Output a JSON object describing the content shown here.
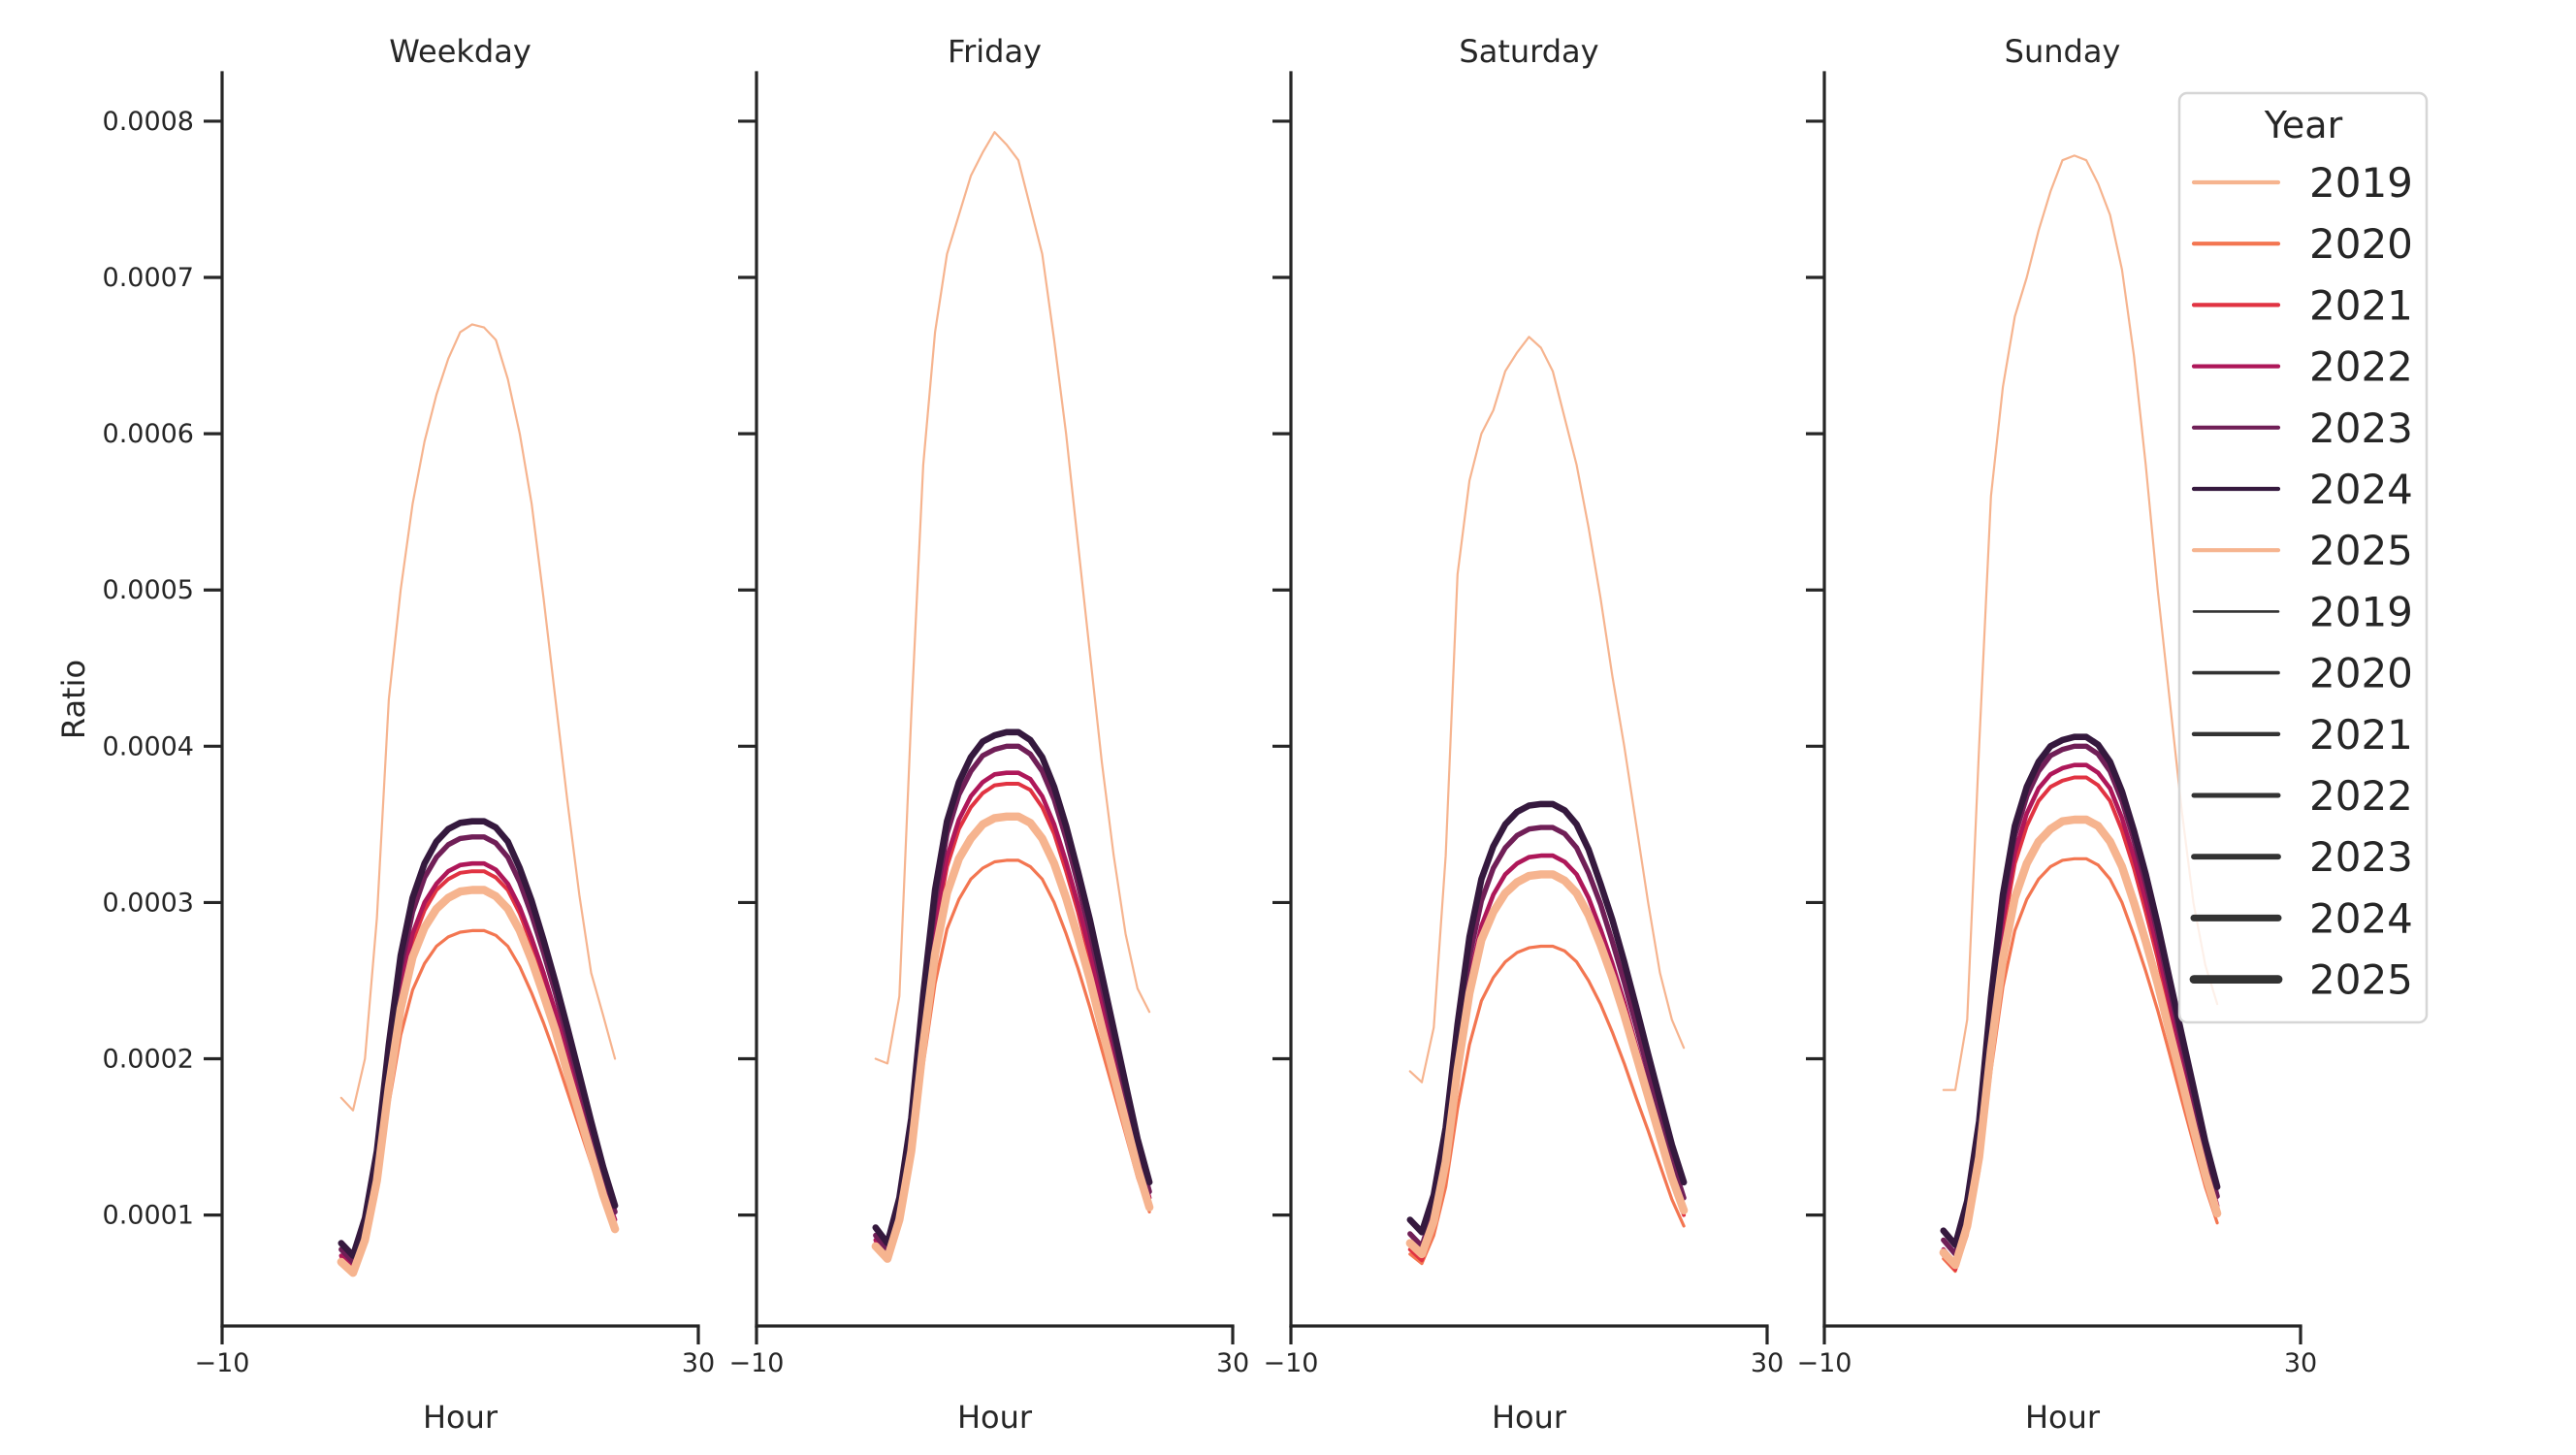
{
  "chart_data": {
    "type": "line",
    "layout": "facet-columns",
    "ylabel": "Ratio",
    "xlabel": "Hour",
    "xlim": [
      -10,
      30
    ],
    "ylim": [
      2.9e-05,
      0.000831
    ],
    "x_ticks": [
      "−10",
      "30"
    ],
    "x_tick_values": [
      -10,
      30
    ],
    "y_ticks": [
      "0.0001",
      "0.0002",
      "0.0003",
      "0.0004",
      "0.0005",
      "0.0006",
      "0.0007",
      "0.0008"
    ],
    "y_tick_values": [
      0.0001,
      0.0002,
      0.0003,
      0.0004,
      0.0005,
      0.0006,
      0.0007,
      0.0008
    ],
    "grid": false,
    "x": [
      0,
      1,
      2,
      3,
      4,
      5,
      6,
      7,
      8,
      9,
      10,
      11,
      12,
      13,
      14,
      15,
      16,
      17,
      18,
      19,
      20,
      21,
      22,
      23
    ],
    "value_scale": 1e-06,
    "years": [
      {
        "year": "2019",
        "color": "#f6b48f",
        "size_rank": 1
      },
      {
        "year": "2020",
        "color": "#f37651",
        "size_rank": 2
      },
      {
        "year": "2021",
        "color": "#e13342",
        "size_rank": 3
      },
      {
        "year": "2022",
        "color": "#ae1759",
        "size_rank": 4
      },
      {
        "year": "2023",
        "color": "#701f57",
        "size_rank": 5
      },
      {
        "year": "2024",
        "color": "#35193e",
        "size_rank": 6
      },
      {
        "year": "2025",
        "color": "#f6b48f",
        "size_rank": 7
      }
    ],
    "panels": [
      {
        "title": "Weekday",
        "series": [
          {
            "name": "2019",
            "values": [
              175,
              167,
              200,
              290,
              430,
              500,
              555,
              595,
              625,
              648,
              665,
              670,
              668,
              660,
              635,
              600,
              555,
              495,
              430,
              365,
              305,
              255,
              228,
              200
            ]
          },
          {
            "name": "2020",
            "values": [
              72,
              66,
              85,
              118,
              171,
              215,
              244,
              261,
              272,
              278,
              281,
              282,
              282,
              279,
              272,
              259,
              242,
              223,
              202,
              179,
              156,
              133,
              110,
              91
            ]
          },
          {
            "name": "2021",
            "values": [
              72,
              65,
              87,
              127,
              189,
              241,
              275,
              295,
              308,
              315,
              319,
              320,
              320,
              316,
              308,
              293,
              273,
              251,
              226,
              198,
              171,
              144,
              117,
              94
            ]
          },
          {
            "name": "2022",
            "values": [
              74,
              66,
              89,
              129,
              192,
              245,
              280,
              300,
              312,
              320,
              324,
              325,
              325,
              321,
              312,
              297,
              277,
              255,
              230,
              202,
              174,
              147,
              119,
              97
            ]
          },
          {
            "name": "2023",
            "values": [
              78,
              70,
              94,
              136,
              202,
              258,
              294,
              316,
              329,
              337,
              341,
              342,
              342,
              338,
              329,
              313,
              292,
              268,
              242,
              213,
              184,
              155,
              126,
              102
            ]
          },
          {
            "name": "2024",
            "values": [
              82,
              74,
              98,
              141,
              209,
              266,
              303,
              325,
              339,
              347,
              351,
              352,
              352,
              348,
              339,
              322,
              301,
              276,
              249,
              220,
              190,
              160,
              131,
              106
            ]
          },
          {
            "name": "2025",
            "values": [
              70,
              63,
              84,
              122,
              182,
              232,
              265,
              284,
              296,
              303,
              307,
              308,
              308,
              304,
              296,
              282,
              263,
              241,
              218,
              191,
              165,
              139,
              113,
              91
            ]
          }
        ]
      },
      {
        "title": "Friday",
        "series": [
          {
            "name": "2019",
            "values": [
              200,
              197,
              240,
              420,
              580,
              665,
              715,
              740,
              765,
              780,
              793,
              785,
              775,
              745,
              715,
              660,
              600,
              530,
              460,
              390,
              330,
              280,
              245,
              230
            ]
          },
          {
            "name": "2020",
            "values": [
              80,
              73,
              95,
              134,
              196,
              248,
              283,
              302,
              315,
              322,
              326,
              327,
              327,
              323,
              315,
              300,
              280,
              258,
              233,
              206,
              179,
              152,
              124,
              102
            ]
          },
          {
            "name": "2021",
            "values": [
              82,
              73,
              100,
              147,
              220,
              282,
              323,
              347,
              361,
              370,
              375,
              376,
              376,
              372,
              361,
              344,
              320,
              294,
              264,
              232,
              200,
              167,
              135,
              108
            ]
          },
          {
            "name": "2022",
            "values": [
              84,
              75,
              102,
              150,
              225,
              287,
              329,
              353,
              368,
              377,
              382,
              383,
              383,
              379,
              368,
              350,
              326,
              299,
              269,
              236,
              204,
              171,
              138,
              111
            ]
          },
          {
            "name": "2023",
            "values": [
              87,
              78,
              106,
              156,
              234,
              300,
              344,
              369,
              384,
              394,
              398,
              400,
              400,
              395,
              384,
              366,
              341,
              312,
              281,
              247,
              212,
              178,
              143,
              115
            ]
          },
          {
            "name": "2024",
            "values": [
              92,
              82,
              111,
              162,
              241,
              308,
              352,
              377,
              393,
              403,
              407,
              409,
              409,
              404,
              393,
              374,
              349,
              320,
              289,
              254,
              219,
              184,
              149,
              121
            ]
          },
          {
            "name": "2025",
            "values": [
              80,
              72,
              97,
              141,
              209,
              267,
              306,
              328,
              341,
              350,
              354,
              355,
              355,
              351,
              341,
              325,
              303,
              278,
              251,
              220,
              190,
              160,
              130,
              105
            ]
          }
        ]
      },
      {
        "title": "Saturday",
        "series": [
          {
            "name": "2019",
            "values": [
              192,
              185,
              220,
              330,
              510,
              570,
              600,
              615,
              640,
              652,
              662,
              655,
              640,
              610,
              580,
              540,
              495,
              445,
              400,
              350,
              300,
              255,
              225,
              207
            ]
          },
          {
            "name": "2020",
            "values": [
              75,
              69,
              87,
              118,
              168,
              209,
              237,
              252,
              262,
              268,
              271,
              272,
              272,
              269,
              262,
              250,
              235,
              217,
              197,
              175,
              154,
              132,
              110,
              93
            ]
          },
          {
            "name": "2021",
            "values": [
              78,
              71,
              92,
              131,
              191,
              241,
              275,
              294,
              306,
              313,
              317,
              318,
              318,
              314,
              306,
              292,
              272,
              251,
              227,
              200,
              174,
              148,
              121,
              100
            ]
          },
          {
            "name": "2022",
            "values": [
              82,
              75,
              97,
              137,
              199,
              251,
              285,
              305,
              318,
              325,
              329,
              330,
              330,
              326,
              318,
              303,
              283,
              261,
              236,
              208,
              181,
              154,
              127,
              104
            ]
          },
          {
            "name": "2023",
            "values": [
              88,
              80,
              104,
              145,
              210,
              265,
              301,
              322,
              335,
              343,
              347,
              348,
              348,
              344,
              335,
              319,
              299,
              275,
              249,
              221,
              192,
              163,
              135,
              111
            ]
          },
          {
            "name": "2024",
            "values": [
              97,
              89,
              113,
              156,
              222,
              278,
              315,
              336,
              350,
              358,
              362,
              363,
              363,
              359,
              350,
              334,
              312,
              289,
              262,
              233,
              203,
              174,
              145,
              121
            ]
          },
          {
            "name": "2025",
            "values": [
              82,
              75,
              96,
              134,
              193,
              242,
              276,
              294,
              306,
              313,
              317,
              318,
              318,
              314,
              306,
              292,
              273,
              252,
              228,
              202,
              176,
              150,
              124,
              103
            ]
          }
        ]
      },
      {
        "title": "Sunday",
        "series": [
          {
            "name": "2019",
            "values": [
              180,
              180,
              225,
              400,
              560,
              630,
              675,
              700,
              730,
              755,
              775,
              778,
              775,
              760,
              740,
              705,
              650,
              580,
              500,
              430,
              360,
              300,
              260,
              235
            ]
          },
          {
            "name": "2020",
            "values": [
              72,
              64,
              87,
              128,
              192,
              246,
              282,
              302,
              315,
              323,
              327,
              328,
              328,
              324,
              315,
              300,
              279,
              256,
              231,
              203,
              174,
              146,
              118,
              95
            ]
          },
          {
            "name": "2021",
            "values": [
              74,
              65,
              92,
              141,
              218,
              282,
              325,
              349,
              365,
              374,
              378,
              380,
              380,
              375,
              365,
              346,
              322,
              294,
              264,
              230,
              196,
              163,
              129,
              102
            ]
          },
          {
            "name": "2022",
            "values": [
              78,
              69,
              97,
              146,
              224,
              289,
              332,
              357,
              373,
              382,
              386,
              388,
              388,
              383,
              373,
              354,
              329,
              301,
              270,
              236,
              202,
              168,
              134,
              106
            ]
          },
          {
            "name": "2023",
            "values": [
              84,
              75,
              103,
              154,
              233,
              299,
              343,
              368,
              384,
              394,
              398,
              400,
              400,
              395,
              384,
              365,
              340,
              312,
              280,
              245,
              210,
              176,
              141,
              112
            ]
          },
          {
            "name": "2024",
            "values": [
              90,
              81,
              109,
              160,
              239,
              305,
              349,
              374,
              390,
              400,
              404,
              406,
              406,
              401,
              390,
              371,
              346,
              318,
              286,
              251,
              216,
              182,
              147,
              118
            ]
          },
          {
            "name": "2025",
            "values": [
              76,
              68,
              93,
              137,
              206,
              264,
              303,
              325,
              339,
              347,
              352,
              353,
              353,
              349,
              339,
              323,
              300,
              275,
              248,
              217,
              187,
              156,
              126,
              101
            ]
          }
        ]
      }
    ],
    "legend": {
      "title": "Year",
      "placement": "top-right",
      "hue_entries": [
        "2019",
        "2020",
        "2021",
        "2022",
        "2023",
        "2024",
        "2025"
      ],
      "size_entries": [
        "2019",
        "2020",
        "2021",
        "2022",
        "2023",
        "2024",
        "2025"
      ],
      "size_entry_color": "#333333"
    }
  }
}
